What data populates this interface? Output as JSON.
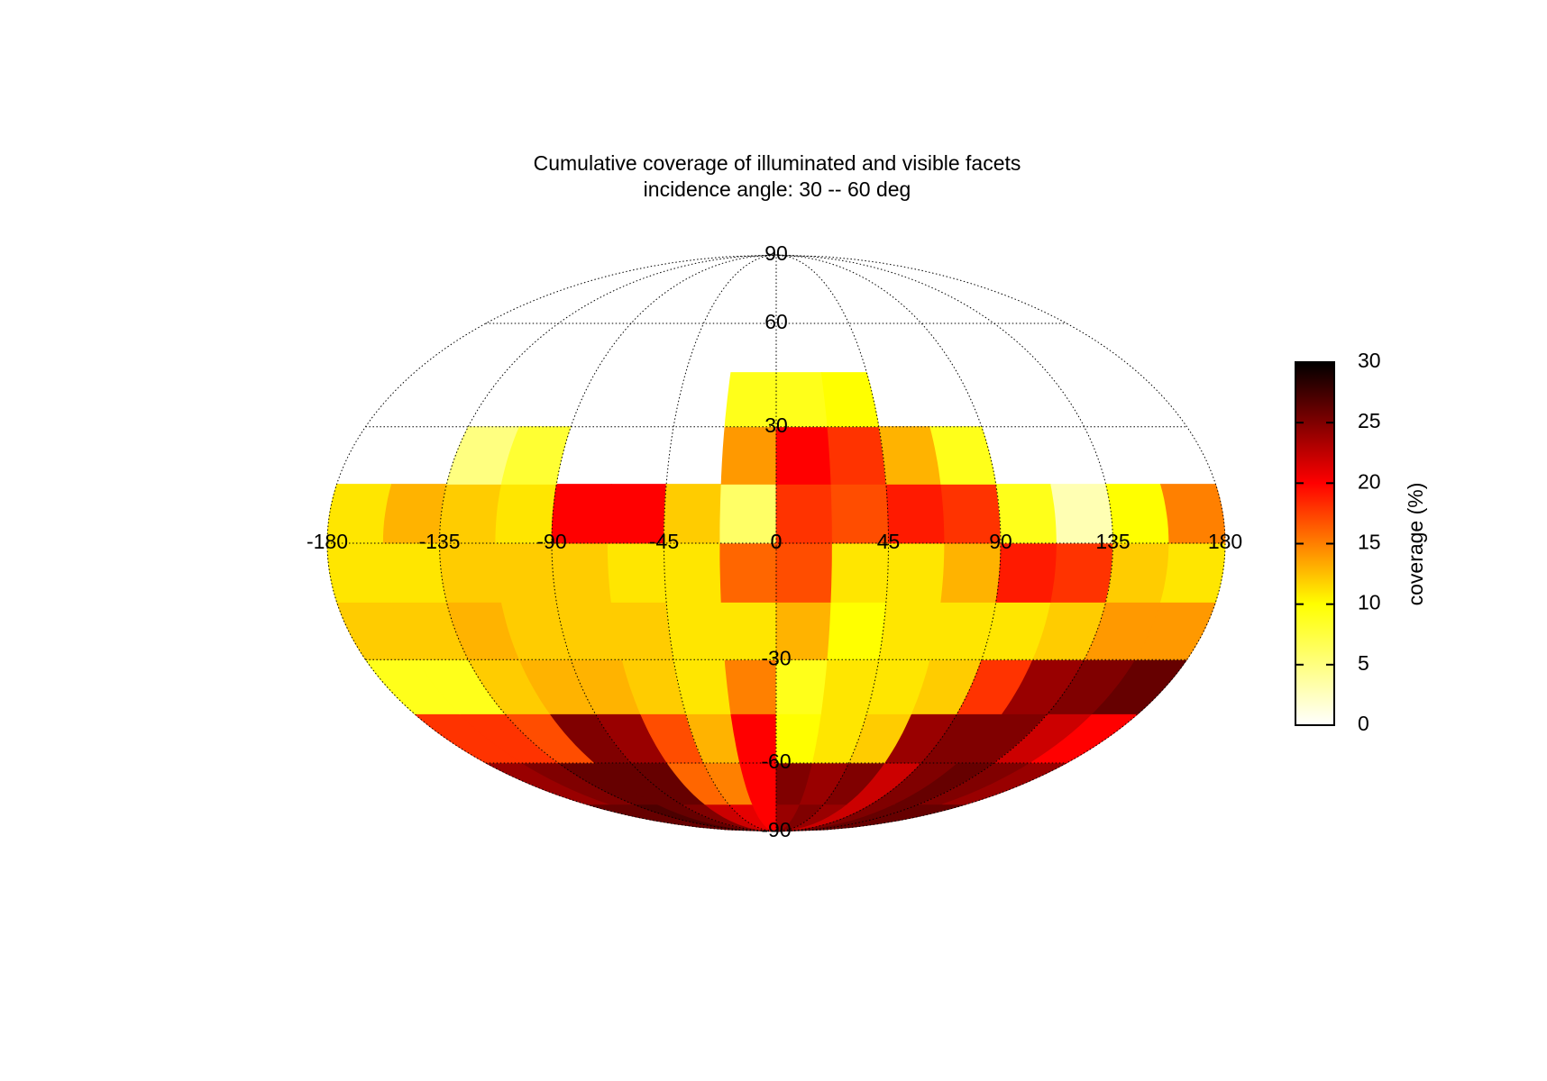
{
  "chart_data": {
    "type": "mollweide-heatmap",
    "title": "Cumulative coverage of illuminated and visible facets",
    "subtitle": "incidence angle: 30 -- 60 deg",
    "colorbar_label": "coverage (%)",
    "lon_edges": [
      -180,
      -157.5,
      -135,
      -112.5,
      -90,
      -67.5,
      -45,
      -22.5,
      0,
      22.5,
      45,
      67.5,
      90,
      112.5,
      135,
      157.5,
      180
    ],
    "lat_edges": [
      -90,
      -75,
      -60,
      -45,
      -30,
      -15,
      0,
      15,
      30,
      45
    ],
    "values": [
      [
        26,
        26,
        27,
        26,
        25,
        22,
        21,
        20,
        24,
        25,
        24,
        22,
        25,
        26,
        26,
        26
      ],
      [
        24,
        25,
        26,
        26,
        26,
        16,
        15,
        20,
        25,
        24,
        25,
        22,
        25,
        26,
        25,
        24
      ],
      [
        18,
        18,
        17,
        25,
        24,
        17,
        13,
        20,
        10,
        11,
        12,
        24,
        25,
        25,
        22,
        20
      ],
      [
        9,
        9,
        12,
        13,
        13,
        12,
        11,
        15,
        9,
        11,
        11,
        12,
        18,
        24,
        25,
        26
      ],
      [
        12,
        12,
        13,
        12,
        12,
        12,
        11,
        11,
        13,
        10,
        11,
        11,
        11,
        12,
        14,
        14
      ],
      [
        11,
        11,
        12,
        12,
        12,
        11,
        11,
        16,
        17,
        11,
        11,
        13,
        19,
        18,
        12,
        11
      ],
      [
        11,
        13,
        12,
        11,
        20,
        20,
        12,
        6,
        18,
        17,
        19,
        18,
        9,
        3,
        10,
        15
      ],
      [
        null,
        null,
        5,
        8,
        null,
        null,
        null,
        14,
        20,
        18,
        13,
        9,
        null,
        null,
        null,
        null
      ],
      [
        null,
        null,
        null,
        null,
        null,
        null,
        null,
        9,
        9,
        10,
        null,
        null,
        null,
        null,
        null,
        null
      ]
    ],
    "xlim": [
      -180,
      180
    ],
    "ylim": [
      -90,
      90
    ],
    "xticks": [
      -180,
      -135,
      -90,
      -45,
      0,
      45,
      90,
      135,
      180
    ],
    "yticks": [
      -90,
      -60,
      -30,
      0,
      30,
      60,
      90
    ],
    "clim": [
      0,
      30
    ],
    "cticks": [
      0,
      5,
      10,
      15,
      20,
      25,
      30
    ],
    "colormap": [
      "#ffffff",
      "#ffff00",
      "#ff0000",
      "#000000"
    ],
    "grid": true
  }
}
